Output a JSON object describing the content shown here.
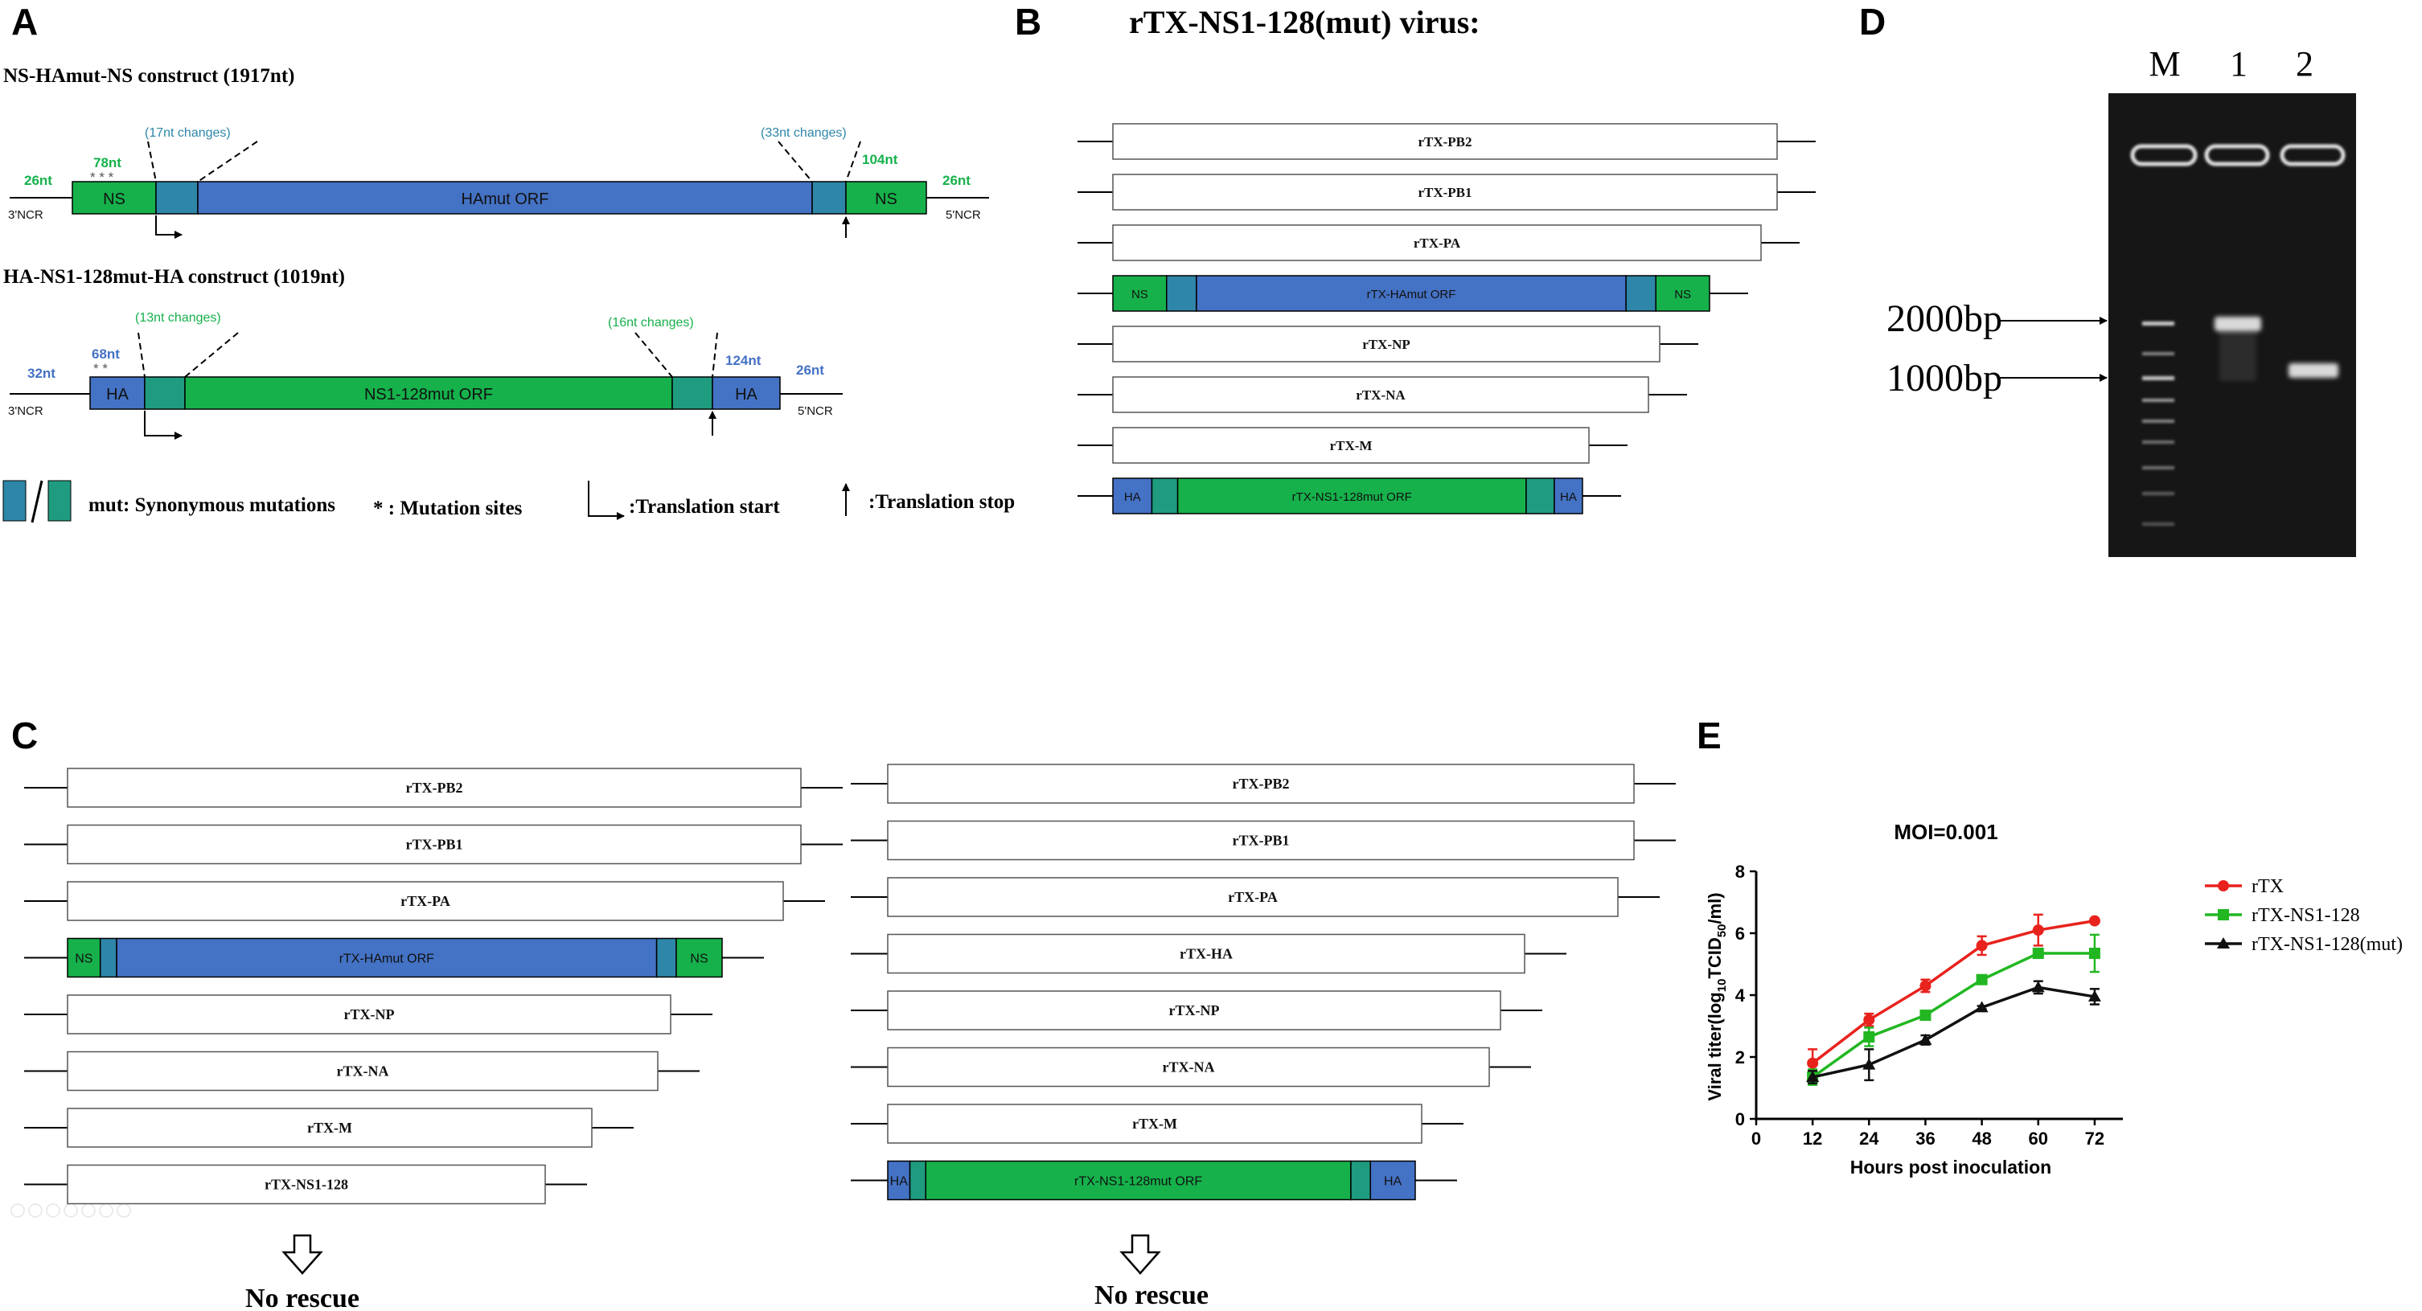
{
  "panels": {
    "A": "A",
    "B": "B",
    "C": "C",
    "D": "D",
    "E": "E"
  },
  "panel_a": {
    "construct1_title": "NS-HAmut-NS construct (1917nt)",
    "construct1": {
      "left_box": "NS",
      "orf": "HAmut ORF",
      "right_box": "NS",
      "left_len": "26nt",
      "ns_len": "78nt",
      "right_ns_len": "104nt",
      "right_len": "26nt",
      "change_left": "(17nt changes)",
      "change_right": "(33nt changes)",
      "ncr3": "3'NCR",
      "ncr5": "5'NCR",
      "stars": "* * *"
    },
    "construct2_title": "HA-NS1-128mut-HA construct (1019nt)",
    "construct2": {
      "left_box": "HA",
      "orf": "NS1-128mut ORF",
      "right_box": "HA",
      "left_len": "32nt",
      "ha_len": "68nt",
      "right_ha_len": "124nt",
      "right_len": "26nt",
      "change_left": "(13nt changes)",
      "change_right": "(16nt changes)",
      "ncr3": "3'NCR",
      "ncr5": "5'NCR",
      "stars": "* *"
    },
    "legend": {
      "mut": "mut: Synonymous mutations",
      "sites": "* : Mutation sites",
      "start": ":Translation start",
      "stop": ":Translation stop"
    }
  },
  "panel_b": {
    "title": "rTX-NS1-128(mut) virus:",
    "segments": [
      "rTX-PB2",
      "rTX-PB1",
      "rTX-PA",
      "rTX-HAmut ORF",
      "rTX-NP",
      "rTX-NA",
      "rTX-M",
      "rTX-NS1-128mut ORF"
    ],
    "flank_ns": "NS",
    "flank_ha": "HA"
  },
  "panel_c": {
    "left_segments": [
      "rTX-PB2",
      "rTX-PB1",
      "rTX-PA",
      "rTX-HAmut ORF",
      "rTX-NP",
      "rTX-NA",
      "rTX-M",
      "rTX-NS1-128"
    ],
    "right_segments": [
      "rTX-PB2",
      "rTX-PB1",
      "rTX-PA",
      "rTX-HA",
      "rTX-NP",
      "rTX-NA",
      "rTX-M",
      "rTX-NS1-128mut ORF"
    ],
    "flank_ns": "NS",
    "flank_ha": "HA",
    "result_left": "No rescue",
    "result_right": "No rescue"
  },
  "panel_d": {
    "lanes": [
      "M",
      "1",
      "2"
    ],
    "marker_2000": "2000bp",
    "marker_1000": "1000bp"
  },
  "chart_data": {
    "type": "line",
    "title": "MOI=0.001",
    "xlabel": "Hours post inoculation",
    "ylabel_main": "Viral titer(log",
    "ylabel_sub1": "10",
    "ylabel_mid": "TCID",
    "ylabel_sub2": "50",
    "ylabel_end": "/ml)",
    "x": [
      12,
      24,
      36,
      48,
      60,
      72
    ],
    "xticks": [
      "0",
      "12",
      "24",
      "36",
      "48",
      "60",
      "72"
    ],
    "yticks": [
      "0",
      "2",
      "4",
      "6",
      "8"
    ],
    "xlim": [
      0,
      78
    ],
    "ylim": [
      0,
      8
    ],
    "series": [
      {
        "name": "rTX",
        "color": "#e8221d",
        "marker": "circle",
        "values": [
          1.8,
          3.2,
          4.3,
          5.6,
          6.1,
          6.4
        ],
        "errors": [
          0.45,
          0.2,
          0.2,
          0.3,
          0.5,
          0.05
        ]
      },
      {
        "name": "rTX-NS1-128",
        "color": "#22b722",
        "marker": "square",
        "values": [
          1.35,
          2.65,
          3.35,
          4.5,
          5.35,
          5.35
        ],
        "errors": [
          0.25,
          0.3,
          0.05,
          0.1,
          0.15,
          0.6
        ]
      },
      {
        "name": "rTX-NS1-128(mut)",
        "color": "#111111",
        "marker": "triangle",
        "values": [
          1.35,
          1.75,
          2.55,
          3.6,
          4.25,
          3.95
        ],
        "errors": [
          0.2,
          0.5,
          0.15,
          0.05,
          0.2,
          0.25
        ]
      }
    ]
  },
  "colors": {
    "blue": "#4472c4",
    "green": "#16b14b",
    "mut_blue": "#2e86a8",
    "mut_green": "#1f9c80",
    "gel": "#161616"
  }
}
